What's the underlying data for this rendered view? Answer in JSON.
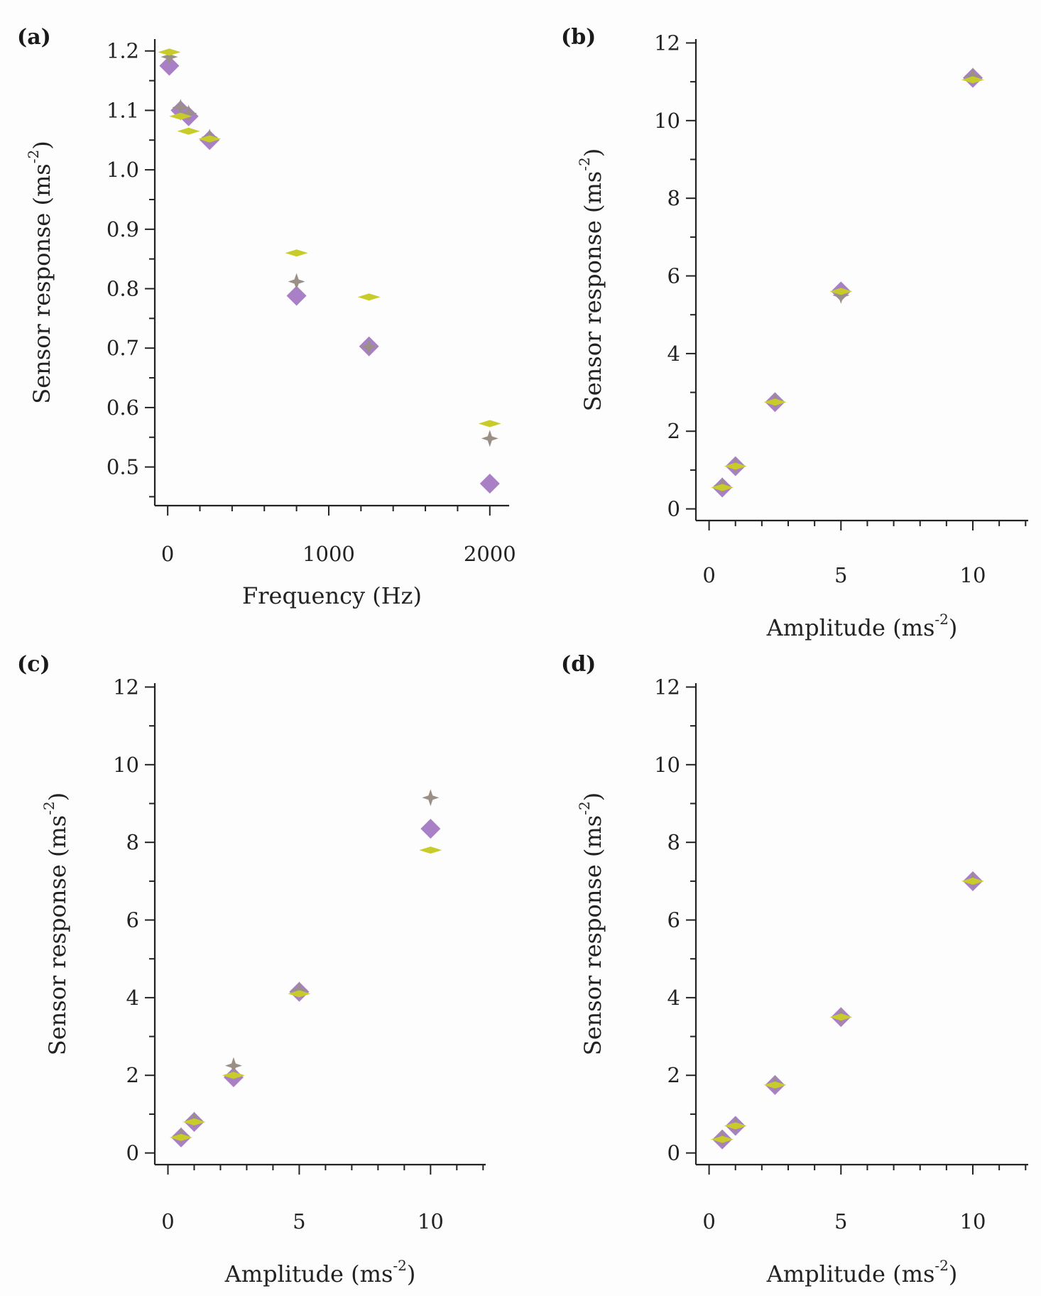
{
  "colors": {
    "purple": "#a97fc6",
    "gray": "#9a9088",
    "yellow": "#c8cc2a",
    "axis": "#222222"
  },
  "chart_data": [
    {
      "panel": "(a)",
      "type": "scatter",
      "xlabel": "Frequency (Hz)",
      "ylabel_main": "Sensor response (ms",
      "ylabel_sup": "-2",
      "ylabel_close": ")",
      "xlim": [
        -80,
        2120
      ],
      "ylim": [
        0.435,
        1.22
      ],
      "xticks": [
        0,
        1000,
        2000
      ],
      "xtick_labels": [
        "0",
        "1000",
        "2000"
      ],
      "xminor": 200,
      "yticks": [
        0.5,
        0.6,
        0.7,
        0.8,
        0.9,
        1.0,
        1.1,
        1.2
      ],
      "ytick_labels": [
        "0.5",
        "0.6",
        "0.7",
        "0.8",
        "0.9",
        "1.0",
        "1.1",
        "1.2"
      ],
      "yminor": 0.05,
      "series": [
        {
          "name": "purple diamond",
          "marker": "diamond",
          "color": "purple",
          "x": [
            10,
            80,
            130,
            260,
            800,
            1250,
            2000
          ],
          "y": [
            1.175,
            1.1,
            1.09,
            1.05,
            0.788,
            0.703,
            0.472
          ]
        },
        {
          "name": "gray star",
          "marker": "star",
          "color": "gray",
          "x": [
            10,
            80,
            130,
            260,
            800,
            1250,
            2000
          ],
          "y": [
            1.19,
            1.105,
            1.095,
            1.055,
            0.812,
            0.702,
            0.548
          ]
        },
        {
          "name": "yellow dash",
          "marker": "dash",
          "color": "yellow",
          "x": [
            10,
            80,
            130,
            260,
            800,
            1250,
            2000
          ],
          "y": [
            1.198,
            1.09,
            1.065,
            1.052,
            0.86,
            0.786,
            0.573
          ]
        }
      ]
    },
    {
      "panel": "(b)",
      "type": "scatter",
      "xlabel_main": "Amplitude (ms",
      "xlabel_sup": "-2",
      "xlabel_close": ")",
      "ylabel_main": "Sensor response (ms",
      "ylabel_sup": "-2",
      "ylabel_close": ")",
      "xlim": [
        -0.5,
        12.1
      ],
      "ylim": [
        -0.3,
        12.1
      ],
      "xticks": [
        0,
        5,
        10
      ],
      "xtick_labels": [
        "0",
        "5",
        "10"
      ],
      "xminor": 1,
      "yticks": [
        0,
        2,
        4,
        6,
        8,
        10,
        12
      ],
      "ytick_labels": [
        "0",
        "2",
        "4",
        "6",
        "8",
        "10",
        "12"
      ],
      "yminor": 1,
      "series": [
        {
          "name": "purple diamond",
          "marker": "diamond",
          "color": "purple",
          "x": [
            0.5,
            1,
            2.5,
            5,
            10
          ],
          "y": [
            0.55,
            1.1,
            2.75,
            5.6,
            11.1
          ]
        },
        {
          "name": "gray star",
          "marker": "star",
          "color": "gray",
          "x": [
            0.5,
            1,
            2.5,
            5,
            10
          ],
          "y": [
            0.6,
            1.12,
            2.78,
            5.5,
            11.15
          ]
        },
        {
          "name": "yellow dash",
          "marker": "dash",
          "color": "yellow",
          "x": [
            0.5,
            1,
            2.5,
            5,
            10
          ],
          "y": [
            0.55,
            1.1,
            2.75,
            5.6,
            11.05
          ]
        }
      ]
    },
    {
      "panel": "(c)",
      "type": "scatter",
      "xlabel_main": "Amplitude (ms",
      "xlabel_sup": "-2",
      "xlabel_close": ")",
      "ylabel_main": "Sensor response (ms",
      "ylabel_sup": "-2",
      "ylabel_close": ")",
      "xlim": [
        -0.5,
        12.1
      ],
      "ylim": [
        -0.3,
        12.1
      ],
      "xticks": [
        0,
        5,
        10
      ],
      "xtick_labels": [
        "0",
        "5",
        "10"
      ],
      "xminor": 1,
      "yticks": [
        0,
        2,
        4,
        6,
        8,
        10,
        12
      ],
      "ytick_labels": [
        "0",
        "2",
        "4",
        "6",
        "8",
        "10",
        "12"
      ],
      "yminor": 1,
      "series": [
        {
          "name": "purple diamond",
          "marker": "diamond",
          "color": "purple",
          "x": [
            0.5,
            1,
            2.5,
            5,
            10
          ],
          "y": [
            0.4,
            0.8,
            1.95,
            4.15,
            8.35
          ]
        },
        {
          "name": "gray star",
          "marker": "star",
          "color": "gray",
          "x": [
            0.5,
            1,
            2.5,
            5,
            10
          ],
          "y": [
            0.45,
            0.85,
            2.25,
            4.2,
            9.15
          ]
        },
        {
          "name": "yellow dash",
          "marker": "dash",
          "color": "yellow",
          "x": [
            0.5,
            1,
            2.5,
            5,
            10
          ],
          "y": [
            0.4,
            0.8,
            2.0,
            4.1,
            7.8
          ]
        }
      ]
    },
    {
      "panel": "(d)",
      "type": "scatter",
      "xlabel_main": "Amplitude (ms",
      "xlabel_sup": "-2",
      "xlabel_close": ")",
      "ylabel_main": "Sensor response (ms",
      "ylabel_sup": "-2",
      "ylabel_close": ")",
      "xlim": [
        -0.5,
        12.1
      ],
      "ylim": [
        -0.3,
        12.1
      ],
      "xticks": [
        0,
        5,
        10
      ],
      "xtick_labels": [
        "0",
        "5",
        "10"
      ],
      "xminor": 1,
      "yticks": [
        0,
        2,
        4,
        6,
        8,
        10,
        12
      ],
      "ytick_labels": [
        "0",
        "2",
        "4",
        "6",
        "8",
        "10",
        "12"
      ],
      "yminor": 1,
      "series": [
        {
          "name": "purple diamond",
          "marker": "diamond",
          "color": "purple",
          "x": [
            0.5,
            1,
            2.5,
            5,
            10
          ],
          "y": [
            0.35,
            0.7,
            1.75,
            3.5,
            7.0
          ]
        },
        {
          "name": "gray star",
          "marker": "star",
          "color": "gray",
          "x": [
            0.5,
            1,
            2.5,
            5,
            10
          ],
          "y": [
            0.38,
            0.72,
            1.78,
            3.52,
            7.02
          ]
        },
        {
          "name": "yellow dash",
          "marker": "dash",
          "color": "yellow",
          "x": [
            0.5,
            1,
            2.5,
            5,
            10
          ],
          "y": [
            0.35,
            0.7,
            1.75,
            3.5,
            7.0
          ]
        }
      ]
    }
  ]
}
